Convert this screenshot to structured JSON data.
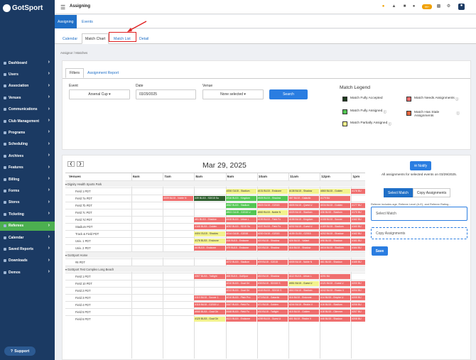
{
  "app": {
    "name": "GotSport",
    "page_title": "Assigning"
  },
  "colors": {
    "sidebar": "#1b3a63",
    "active_nav": "#4caf50",
    "primary": "#2a7de1",
    "fully_accepted": "#1f3b1f",
    "fully_assigned": "#53c653",
    "partially_assigned": "#f2f28c",
    "needs_assignments": "#ef6e6e",
    "stale": "#e5653c",
    "annotation": "#e02020"
  },
  "topbar_icons": [
    "help-icon",
    "notifications-icon",
    "list-icon",
    "user-icon",
    "messages-icon",
    "grid-icon",
    "settings-icon",
    "profile-icon"
  ],
  "topbar_badge": "99+",
  "sidebar": {
    "items": [
      {
        "label": "Dashboard",
        "y": 0
      },
      {
        "label": "Users"
      },
      {
        "label": "Association"
      },
      {
        "label": "Venues"
      },
      {
        "label": "Communications"
      },
      {
        "label": "Club Management"
      },
      {
        "label": "Programs"
      },
      {
        "label": "Scheduling"
      },
      {
        "label": "Archives"
      },
      {
        "label": "Features"
      },
      {
        "label": "Billing"
      },
      {
        "label": "Forms"
      },
      {
        "label": "Stores"
      },
      {
        "label": "Ticketing"
      },
      {
        "label": "Referees",
        "active": true
      },
      {
        "label": "Calendar"
      },
      {
        "label": "Saved Reports"
      },
      {
        "label": "Downloads"
      },
      {
        "label": "Demos"
      }
    ],
    "support_label": "Support"
  },
  "subnav": {
    "tabs": [
      "Assigning",
      "Events"
    ]
  },
  "tabs2": [
    "Calendar",
    "Match Chart",
    "Match List",
    "Detail"
  ],
  "breadcrumb": "Assignor  /  Matches",
  "filters": {
    "tabs": [
      "Filters",
      "Assignment Report"
    ],
    "event_label": "Event",
    "event_value": "Arsenal Cup ▾",
    "date_label": "Date",
    "date_value": "03/29/2025",
    "venue_label": "Venue",
    "venue_value": "None selected ▾",
    "search_label": "Search"
  },
  "legend": {
    "title": "Match Legend",
    "items": [
      {
        "label": "Match Fully Accepted",
        "color": "#1f3b1f"
      },
      {
        "label": "Match Fully Assigned",
        "color": "#53c653",
        "info": true
      },
      {
        "label": "Match Partially Assigned",
        "color": "#f2f28c",
        "info": true
      },
      {
        "label": "Match Needs Assignments",
        "color": "#ef6e6e",
        "info": true
      },
      {
        "label": "Match Has Stale Assignments",
        "color": "#e5653c",
        "info": true
      }
    ]
  },
  "schedule": {
    "date_title": "Mar 29, 2025",
    "venues_header": "Venues",
    "times": [
      "6am",
      "7am",
      "8am",
      "9am",
      "10am",
      "11am",
      "12pm",
      "1pm"
    ],
    "rows": [
      {
        "group": "Dignity Health Sports Park"
      },
      {
        "venue": "Field 1 PDT",
        "events": [
          [
            "#206 GU15 - Stadium",
            "y"
          ],
          [
            "#131 BU15 - Endzone",
            "y"
          ],
          [
            "#138 BU15 - Shadow",
            "y"
          ],
          [
            "#860 BU15 - Golden",
            "y"
          ],
          [
            "#176 BU",
            "r"
          ]
        ]
      },
      {
        "venue": "Field 7a PDT",
        "events": [
          [
            "#009 BU15 - Noble N",
            "r"
          ],
          [
            "#39 BU15 - SD015 Su",
            "d"
          ],
          [
            "#316 BU15 - Kingdom",
            "g"
          ],
          [
            "#605 BU15 - Shadow",
            "g"
          ],
          [
            "#67 BU15 - Galactic",
            "r"
          ],
          [
            "#179 BU",
            "r"
          ]
        ]
      },
      {
        "venue": "Field 7b PDT",
        "events": [
          [
            "#662 BU15 - Stadium",
            "g"
          ],
          [
            "#603 GU15 - G2015",
            "r"
          ],
          [
            "#605 BU15 - Quest U",
            "r"
          ],
          [
            "#034 BU15 - Golden",
            "r"
          ],
          [
            "#177 BU",
            "r"
          ]
        ]
      },
      {
        "venue": "Field 7c PDT",
        "events": [
          [
            "#803 GU15 - G2015 U",
            "g"
          ],
          [
            "#652 BU15 - Noble N",
            "y"
          ],
          [
            "#025 BU15 - Stadium",
            "r"
          ],
          [
            "#36 BU15 - Stadium",
            "r"
          ],
          [
            "#170 BU",
            "r"
          ]
        ]
      },
      {
        "venue": "Field 7d PDT",
        "events": [
          [
            "#51 BU15 - Shadow",
            "r"
          ],
          [
            "#108 BU15 - Urban L",
            "r"
          ],
          [
            "#199 BU15 - Field Fo",
            "r"
          ],
          [
            "#158 BU15 - Kingdom",
            "r"
          ],
          [
            "#108 BU15 - Soccer",
            "r"
          ],
          [
            "#162 BU",
            "r"
          ]
        ]
      },
      {
        "venue": "Stadium PDT",
        "events": [
          [
            "#168 BU15 - Golden",
            "r"
          ],
          [
            "#092 BU15 - SD15 Su",
            "r"
          ],
          [
            "#157 BU15 - Field Fo",
            "r"
          ],
          [
            "#202 BU15 - Guest U",
            "r"
          ],
          [
            "#189 BU15 - Stadium",
            "r"
          ],
          [
            "#160 BU",
            "r"
          ]
        ]
      },
      {
        "venue": "Track & Field PDT",
        "events": [
          [
            "#404 GU15 - Shadow",
            "y"
          ],
          [
            "#214 GU15 - G2015",
            "r"
          ],
          [
            "#200 GU15 - G2015",
            "r"
          ],
          [
            "#155 GU15 - G2015",
            "r"
          ],
          [
            "#202 BU15 - Shadow",
            "r"
          ],
          [
            "#162 BU",
            "r"
          ]
        ]
      },
      {
        "venue": "Univ. 1 PDT",
        "events": [
          [
            "#176 BU15 - Endzone",
            "y"
          ],
          [
            "#18 BU15 - Endzone",
            "r"
          ],
          [
            "#20 BU15 - Shadow",
            "r"
          ],
          [
            "#26 BU15 - Valiant",
            "r"
          ],
          [
            "#98 BU15 - Shadow",
            "r"
          ],
          [
            "#161 BU",
            "r"
          ]
        ]
      },
      {
        "venue": "Univ. 2 PDT",
        "events": [
          [
            "#4 BU15 - Endzone",
            "r"
          ],
          [
            "#79 BU15 - Endzone",
            "r"
          ],
          [
            "#20 BU15 - Shadow",
            "r"
          ],
          [
            "#16 BU15 - Shadow",
            "r"
          ],
          [
            "#616 BU15 - Stadium",
            "r"
          ],
          [
            "#164 BU",
            "r"
          ]
        ]
      },
      {
        "group": "GotSport Home"
      },
      {
        "venue": "#8 PDT",
        "events": [
          [
            "#272 BU15 - Stadium",
            "r"
          ],
          [
            "#09 BU15 - G2015",
            "r"
          ],
          [
            "#005 BU15 - Noble N",
            "r"
          ],
          [
            "#61 BU15 - Shadow",
            "r"
          ],
          [
            "#165 BU",
            "r"
          ]
        ]
      },
      {
        "group": "GotSport Test Complex Long Beach"
      },
      {
        "venue": "Field 1 PDT",
        "events": [
          [
            "#307 BU15 - Twilight",
            "r"
          ],
          [
            "#68 BU15 - GotSpor",
            "r"
          ],
          [
            "#83 BU15 - Shadow",
            "r"
          ],
          [
            "#112 BU15 - Urban L",
            "r"
          ],
          [
            "#201 BU",
            "r"
          ]
        ]
      },
      {
        "venue": "Field 10 PDT",
        "events": [
          [
            "#210 BU15 - Goal Gri",
            "r"
          ],
          [
            "#08 BU15 - SD015 S",
            "r"
          ],
          [
            "#551 BU15 - Guest U",
            "y"
          ],
          [
            "#121 BU15 - Guest U",
            "r"
          ],
          [
            "#200 BU",
            "r"
          ]
        ]
      },
      {
        "venue": "Field 2 PDT",
        "events": [
          [
            "#213 BU15 - Goal Gri",
            "r"
          ],
          [
            "#163 BU15 - SD015 S",
            "r"
          ],
          [
            "#610 BU15 - Stadium",
            "r"
          ],
          [
            "#242 BU15 - Realm V",
            "r"
          ],
          [
            "#204 BU",
            "r"
          ]
        ]
      },
      {
        "venue": "Field 3 PDT",
        "events": [
          [
            "#110 BU15 - Soccer 1",
            "r"
          ],
          [
            "#210 BU15 - Pitch Pro",
            "r"
          ],
          [
            "#73 BU15 - Galactic",
            "r"
          ],
          [
            "#16 BU15 - Endzone",
            "r"
          ],
          [
            "#14 BU15 - Empire U",
            "r"
          ],
          [
            "#205 BU",
            "r"
          ]
        ]
      },
      {
        "venue": "Field 4 PDT",
        "events": [
          [
            "#118 BU15 - G2015 U",
            "r"
          ],
          [
            "#167 BU15 - Field Fo",
            "r"
          ],
          [
            "#71 BU15 - Golden",
            "r"
          ],
          [
            "#244 BU15 - Realm V",
            "r"
          ],
          [
            "#16 BU15 - Stadium",
            "r"
          ],
          [
            "#206 BU",
            "r"
          ]
        ]
      },
      {
        "venue": "Field 5 PDT",
        "events": [
          [
            "#060 BU15 - Goal Gri",
            "r"
          ],
          [
            "#168 BU15 - Field Fo",
            "r"
          ],
          [
            "#30 BU15 - Twilight",
            "r"
          ],
          [
            "#15 BU15 - Golden",
            "r"
          ],
          [
            "#18 BU15 - Glimmer",
            "r"
          ],
          [
            "#207 BU",
            "r"
          ]
        ]
      },
      {
        "venue": "Field 6 PDT",
        "events": [
          [
            "#120 BU15 - Goal Gri",
            "y"
          ],
          [
            "#121 BU15 - Endzone",
            "r"
          ],
          [
            "#259 BU15 - Guest U",
            "r"
          ],
          [
            "#01 BU15 - Realm V",
            "r"
          ],
          [
            "#46 BU15 - Shadow",
            "r"
          ],
          [
            "#208 BU",
            "r"
          ]
        ]
      }
    ]
  },
  "side": {
    "notify_label": "✉ Notify",
    "all_assignments": "All assignments for selected events on 03/29/2025.",
    "tabs": [
      "Select Match",
      "Copy Assignments"
    ],
    "note": "Referee includes age, Referee Level (A-E), and Referee Rating...",
    "select_placeholder": "Select Match",
    "copy_placeholder": "Copy Assignments",
    "save_label": "Save"
  }
}
